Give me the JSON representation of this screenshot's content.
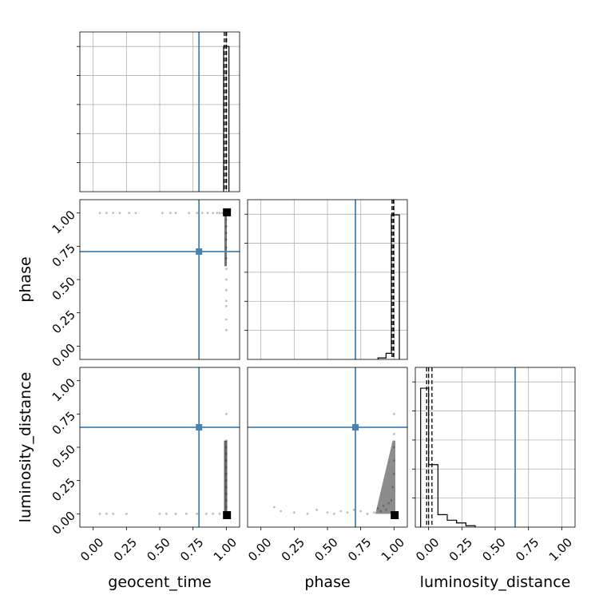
{
  "chart_data": {
    "type": "corner",
    "parameters": [
      "geocent_time",
      "phase",
      "luminosity_distance"
    ],
    "tick_labels": [
      "0.00",
      "0.25",
      "0.50",
      "0.75",
      "1.00"
    ],
    "range": [
      -0.1,
      1.1
    ],
    "truth_color": "#4682b4",
    "injected_values": {
      "geocent_time": 0.795,
      "phase": 0.71,
      "luminosity_distance": 0.65
    },
    "maximum_posterior": {
      "geocent_time": 1.005,
      "phase": 1.005,
      "luminosity_distance": -0.01
    },
    "quantile_lines": {
      "geocent_time": [
        0.985,
        0.998,
        1.002
      ],
      "phase": [
        0.985,
        0.995,
        0.998
      ],
      "luminosity_distance": [
        -0.015,
        0.0,
        0.025
      ]
    },
    "histograms": {
      "geocent_time": {
        "bins": [
          [
            0.98,
            1.02
          ]
        ],
        "heights": [
          1.0
        ],
        "ymax": 1.1
      },
      "phase": {
        "bins": [
          [
            0.88,
            0.94
          ],
          [
            0.94,
            0.98
          ],
          [
            0.98,
            1.04
          ]
        ],
        "heights": [
          0.01,
          0.04,
          0.95
        ],
        "ymax": 1.05
      },
      "luminosity_distance": {
        "bins": [
          [
            -0.06,
            0.0
          ],
          [
            0.0,
            0.07
          ],
          [
            0.07,
            0.14
          ],
          [
            0.14,
            0.21
          ],
          [
            0.21,
            0.28
          ],
          [
            0.28,
            0.35
          ]
        ],
        "heights": [
          1.0,
          0.45,
          0.09,
          0.05,
          0.03,
          0.01
        ],
        "ymax": 1.15
      }
    },
    "scatter": {
      "phase_vs_geocent_time": [
        [
          0.05,
          1.0
        ],
        [
          0.1,
          1.0
        ],
        [
          0.15,
          1.0
        ],
        [
          0.2,
          1.0
        ],
        [
          0.27,
          1.0
        ],
        [
          0.32,
          1.0
        ],
        [
          0.52,
          1.0
        ],
        [
          0.58,
          1.0
        ],
        [
          0.62,
          1.0
        ],
        [
          0.72,
          1.0
        ],
        [
          0.78,
          1.0
        ],
        [
          0.82,
          1.0
        ],
        [
          0.86,
          1.0
        ],
        [
          0.9,
          1.0
        ],
        [
          0.93,
          1.0
        ],
        [
          0.95,
          1.0
        ],
        [
          0.97,
          1.0
        ],
        [
          1.0,
          0.95
        ],
        [
          1.0,
          0.9
        ],
        [
          1.0,
          0.85
        ],
        [
          1.0,
          0.8
        ],
        [
          1.0,
          0.74
        ],
        [
          1.0,
          0.66
        ],
        [
          1.0,
          0.58
        ],
        [
          1.0,
          0.5
        ],
        [
          1.0,
          0.42
        ],
        [
          1.0,
          0.34
        ],
        [
          1.0,
          0.3
        ],
        [
          1.0,
          0.2
        ],
        [
          1.0,
          0.12
        ]
      ],
      "luminosity_distance_vs_geocent_time": [
        [
          0.05,
          0.0
        ],
        [
          0.1,
          0.0
        ],
        [
          0.15,
          0.0
        ],
        [
          0.25,
          0.0
        ],
        [
          0.5,
          0.0
        ],
        [
          0.55,
          0.0
        ],
        [
          0.62,
          0.0
        ],
        [
          0.7,
          0.0
        ],
        [
          0.78,
          0.0
        ],
        [
          0.85,
          0.0
        ],
        [
          0.9,
          0.0
        ],
        [
          0.95,
          0.0
        ],
        [
          1.0,
          0.05
        ],
        [
          1.0,
          0.1
        ],
        [
          1.0,
          0.15
        ],
        [
          1.0,
          0.2
        ],
        [
          1.0,
          0.25
        ],
        [
          1.0,
          0.3
        ],
        [
          1.0,
          0.35
        ],
        [
          1.0,
          0.4
        ],
        [
          1.0,
          0.45
        ],
        [
          1.0,
          0.5
        ],
        [
          1.0,
          0.55
        ],
        [
          1.0,
          0.75
        ]
      ],
      "luminosity_distance_vs_phase": [
        [
          0.1,
          0.05
        ],
        [
          0.15,
          0.02
        ],
        [
          0.25,
          0.01
        ],
        [
          0.35,
          0.0
        ],
        [
          0.42,
          0.03
        ],
        [
          0.5,
          0.01
        ],
        [
          0.55,
          0.0
        ],
        [
          0.6,
          0.02
        ],
        [
          0.65,
          0.01
        ],
        [
          0.7,
          0.03
        ],
        [
          0.75,
          0.02
        ],
        [
          0.8,
          0.0
        ],
        [
          0.85,
          0.01
        ],
        [
          0.88,
          0.04
        ],
        [
          0.9,
          0.02
        ],
        [
          0.92,
          0.06
        ],
        [
          0.94,
          0.03
        ],
        [
          0.96,
          0.08
        ],
        [
          0.98,
          0.1
        ],
        [
          0.99,
          0.2
        ],
        [
          1.0,
          0.3
        ],
        [
          1.0,
          0.4
        ],
        [
          1.0,
          0.5
        ],
        [
          1.0,
          0.6
        ],
        [
          1.0,
          0.75
        ]
      ]
    }
  }
}
